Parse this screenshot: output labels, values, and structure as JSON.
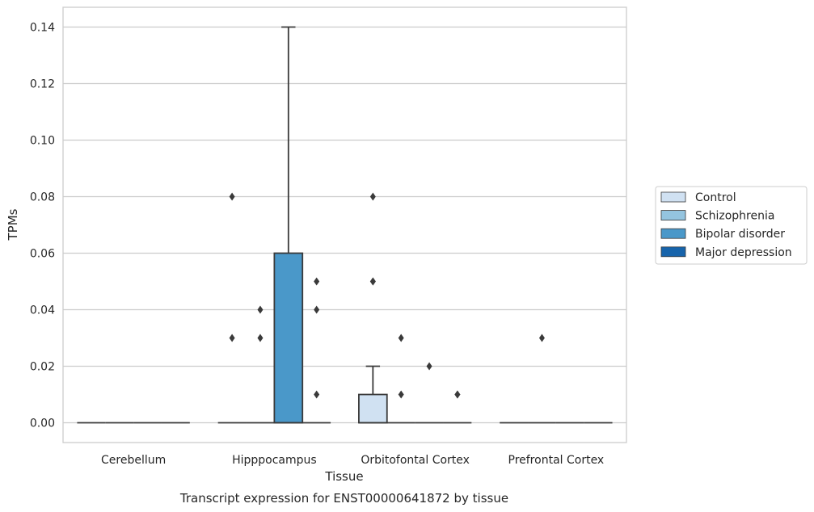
{
  "chart_data": {
    "type": "box",
    "title": "",
    "caption": "Transcript expression for ENST00000641872 by tissue",
    "xlabel": "Tissue",
    "ylabel": "TPMs",
    "ylim": [
      -0.007,
      0.147
    ],
    "yticks": [
      "0.00",
      "0.02",
      "0.04",
      "0.06",
      "0.08",
      "0.10",
      "0.12",
      "0.14"
    ],
    "ytick_values": [
      0,
      0.02,
      0.04,
      0.06,
      0.08,
      0.1,
      0.12,
      0.14
    ],
    "grid": "horizontal",
    "legend_position": "right",
    "categories": [
      "Cerebellum",
      "Hipppocampus",
      "Orbitofontal Cortex",
      "Prefrontal Cortex"
    ],
    "series": [
      {
        "name": "Control",
        "color": "#d0e1f2",
        "boxes": [
          {
            "category": "Cerebellum",
            "q1": 0,
            "median": 0,
            "q3": 0,
            "whisker_low": 0,
            "whisker_high": 0,
            "outliers": []
          },
          {
            "category": "Hipppocampus",
            "q1": 0,
            "median": 0,
            "q3": 0,
            "whisker_low": 0,
            "whisker_high": 0,
            "outliers": [
              0.08,
              0.03
            ]
          },
          {
            "category": "Orbitofontal Cortex",
            "q1": 0,
            "median": 0,
            "q3": 0.01,
            "whisker_low": 0,
            "whisker_high": 0.02,
            "outliers": [
              0.08,
              0.05,
              0.05
            ]
          },
          {
            "category": "Prefrontal Cortex",
            "q1": 0,
            "median": 0,
            "q3": 0,
            "whisker_low": 0,
            "whisker_high": 0,
            "outliers": []
          }
        ]
      },
      {
        "name": "Schizophrenia",
        "color": "#94c4df",
        "boxes": [
          {
            "category": "Cerebellum",
            "q1": 0,
            "median": 0,
            "q3": 0,
            "whisker_low": 0,
            "whisker_high": 0,
            "outliers": []
          },
          {
            "category": "Hipppocampus",
            "q1": 0,
            "median": 0,
            "q3": 0,
            "whisker_low": 0,
            "whisker_high": 0,
            "outliers": [
              0.04,
              0.03
            ]
          },
          {
            "category": "Orbitofontal Cortex",
            "q1": 0,
            "median": 0,
            "q3": 0,
            "whisker_low": 0,
            "whisker_high": 0,
            "outliers": [
              0.03,
              0.01
            ]
          },
          {
            "category": "Prefrontal Cortex",
            "q1": 0,
            "median": 0,
            "q3": 0,
            "whisker_low": 0,
            "whisker_high": 0,
            "outliers": [
              0.03
            ]
          }
        ]
      },
      {
        "name": "Bipolar disorder",
        "color": "#4a98c9",
        "boxes": [
          {
            "category": "Cerebellum",
            "q1": 0,
            "median": 0,
            "q3": 0,
            "whisker_low": 0,
            "whisker_high": 0,
            "outliers": []
          },
          {
            "category": "Hipppocampus",
            "q1": 0,
            "median": 0,
            "q3": 0.06,
            "whisker_low": 0,
            "whisker_high": 0.14,
            "outliers": []
          },
          {
            "category": "Orbitofontal Cortex",
            "q1": 0,
            "median": 0,
            "q3": 0,
            "whisker_low": 0,
            "whisker_high": 0,
            "outliers": [
              0.02
            ]
          },
          {
            "category": "Prefrontal Cortex",
            "q1": 0,
            "median": 0,
            "q3": 0,
            "whisker_low": 0,
            "whisker_high": 0,
            "outliers": []
          }
        ]
      },
      {
        "name": "Major depression",
        "color": "#1764ab",
        "boxes": [
          {
            "category": "Cerebellum",
            "q1": 0,
            "median": 0,
            "q3": 0,
            "whisker_low": 0,
            "whisker_high": 0,
            "outliers": []
          },
          {
            "category": "Hipppocampus",
            "q1": 0,
            "median": 0,
            "q3": 0,
            "whisker_low": 0,
            "whisker_high": 0,
            "outliers": [
              0.05,
              0.04,
              0.01
            ]
          },
          {
            "category": "Orbitofontal Cortex",
            "q1": 0,
            "median": 0,
            "q3": 0,
            "whisker_low": 0,
            "whisker_high": 0,
            "outliers": [
              0.01,
              0.01
            ]
          },
          {
            "category": "Prefrontal Cortex",
            "q1": 0,
            "median": 0,
            "q3": 0,
            "whisker_low": 0,
            "whisker_high": 0,
            "outliers": []
          }
        ]
      }
    ]
  }
}
